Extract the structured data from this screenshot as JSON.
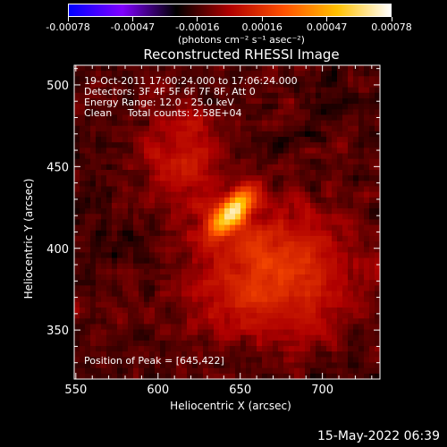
{
  "chart_data": {
    "type": "heatmap",
    "title": "Reconstructed RHESSI Image",
    "xlabel": "Heliocentric X (arcsec)",
    "ylabel": "Heliocentric Y (arcsec)",
    "xlim": [
      549,
      735
    ],
    "ylim": [
      320,
      512
    ],
    "xticks": [
      550,
      600,
      650,
      700
    ],
    "yticks": [
      350,
      400,
      450,
      500
    ],
    "colorbar": {
      "label_prefix": "(photons cm",
      "units": "(photons cm⁻² s⁻¹ asec⁻²)",
      "ticks": [
        "-0.00078",
        "-0.00047",
        "-0.00016",
        "0.00016",
        "0.00047",
        "0.00078"
      ],
      "range": [
        -0.00078,
        0.00078
      ],
      "colors": [
        "#0000ff",
        "#8000ff",
        "#000000",
        "#b00000",
        "#ff5000",
        "#ffc000",
        "#ffffff"
      ]
    },
    "peak": [
      645,
      422
    ],
    "annotations": [
      "19-Oct-2011 17:00:24.000 to 17:06:24.000",
      "Detectors: 3F 4F 5F 6F 7F 8F, Att 0",
      "Energy Range: 12.0 - 25.0 keV",
      "Clean     Total counts: 2.58E+04"
    ],
    "peak_label": "Position of Peak = [645,422]",
    "timestamp": "15-May-2022 06:39"
  }
}
